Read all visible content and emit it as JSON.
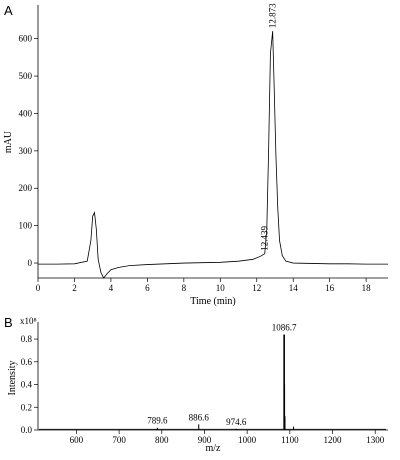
{
  "chart_data": [
    {
      "panel": "A",
      "type": "line",
      "xlabel": "Time (min)",
      "ylabel": "mAU",
      "xlim": [
        0,
        19.2
      ],
      "ylim": [
        -40,
        690
      ],
      "xticks": [
        0,
        2,
        4,
        6,
        8,
        10,
        12,
        14,
        16,
        18
      ],
      "yticks": [
        0,
        100,
        200,
        300,
        400,
        500,
        600
      ],
      "x": [
        0,
        1,
        2,
        2.7,
        2.9,
        3.0,
        3.1,
        3.2,
        3.3,
        3.45,
        3.6,
        3.8,
        4.0,
        4.4,
        5,
        6,
        7,
        8,
        9,
        10,
        11,
        11.8,
        12.2,
        12.439,
        12.55,
        12.65,
        12.75,
        12.873,
        12.95,
        13.05,
        13.15,
        13.25,
        13.4,
        13.6,
        14.0,
        15,
        16,
        17,
        18,
        19.2
      ],
      "y": [
        -3,
        -3,
        -2,
        5,
        60,
        125,
        135,
        90,
        10,
        -25,
        -40,
        -28,
        -18,
        -12,
        -7,
        -4,
        -2,
        0,
        1,
        2,
        5,
        10,
        18,
        25,
        90,
        300,
        560,
        620,
        480,
        290,
        150,
        60,
        20,
        5,
        0,
        -1,
        -2,
        -2,
        -3,
        -3
      ],
      "peak_labels": [
        {
          "x": 12.873,
          "y": 620,
          "text": "12.873"
        },
        {
          "x": 12.439,
          "y": 25,
          "text": "12.439"
        }
      ]
    },
    {
      "panel": "B",
      "type": "bar",
      "xlabel": "m/z",
      "ylabel": "Intensity",
      "y_scale_label": "x10⁸",
      "xlim": [
        510,
        1330
      ],
      "ylim": [
        0,
        0.95
      ],
      "xticks": [
        600,
        700,
        800,
        900,
        1000,
        1100,
        1200,
        1300
      ],
      "yticks": [
        "0.0",
        "0.2",
        "0.4",
        "0.6",
        "0.8"
      ],
      "x": [
        789.6,
        886.6,
        974.6,
        1086.7,
        1087.7,
        1088.7,
        1108.7
      ],
      "values": [
        0.02,
        0.05,
        0.01,
        0.84,
        0.4,
        0.12,
        0.03
      ],
      "peak_labels": [
        {
          "x": 789.6,
          "text": "789.6"
        },
        {
          "x": 886.6,
          "text": "886.6"
        },
        {
          "x": 974.6,
          "text": "974.6"
        },
        {
          "x": 1086.7,
          "text": "1086.7"
        }
      ]
    }
  ]
}
